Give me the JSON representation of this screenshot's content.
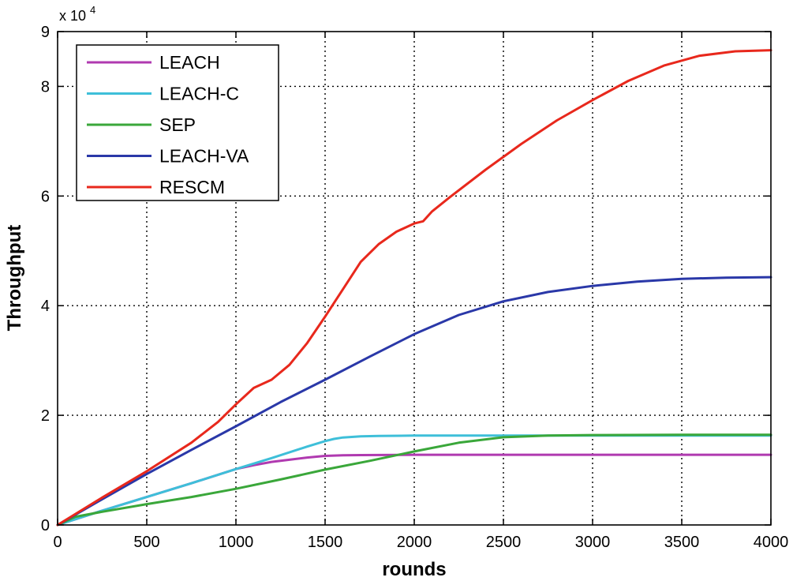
{
  "chart_data": {
    "type": "line",
    "xlabel": "rounds",
    "ylabel": "Throughput",
    "xlim": [
      0,
      4000
    ],
    "ylim": [
      0,
      90000
    ],
    "xticks": [
      0,
      500,
      1000,
      1500,
      2000,
      2500,
      3000,
      3500,
      4000
    ],
    "yticks": [
      0,
      20000,
      40000,
      60000,
      80000,
      90000
    ],
    "ytick_labels": [
      "0",
      "2",
      "4",
      "6",
      "8",
      "9"
    ],
    "y_exponent": {
      "base": "x 10",
      "power": "4"
    },
    "grid": true,
    "legend_position": "top-left",
    "series": [
      {
        "name": "LEACH",
        "color": "#b03ab0",
        "x": [
          0,
          250,
          500,
          750,
          1000,
          1100,
          1200,
          1300,
          1400,
          1500,
          1600,
          1700,
          2000,
          2500,
          3000,
          3500,
          4000
        ],
        "y": [
          0,
          2600,
          5100,
          7600,
          10200,
          10900,
          11500,
          11900,
          12300,
          12600,
          12700,
          12750,
          12800,
          12800,
          12800,
          12800,
          12800
        ]
      },
      {
        "name": "LEACH-C",
        "color": "#3ebfd9",
        "x": [
          0,
          250,
          500,
          750,
          1000,
          1200,
          1400,
          1500,
          1550,
          1600,
          1700,
          1800,
          2000,
          2500,
          3000,
          3500,
          4000
        ],
        "y": [
          0,
          2600,
          5100,
          7600,
          10200,
          12200,
          14300,
          15300,
          15700,
          15950,
          16150,
          16250,
          16300,
          16300,
          16300,
          16300,
          16300
        ]
      },
      {
        "name": "SEP",
        "color": "#3aa73a",
        "x": [
          0,
          100,
          250,
          500,
          750,
          1000,
          1250,
          1500,
          1750,
          2000,
          2250,
          2500,
          2750,
          3000,
          3500,
          4000
        ],
        "y": [
          0,
          1500,
          2400,
          3800,
          5100,
          6600,
          8300,
          10100,
          11700,
          13400,
          15000,
          16000,
          16300,
          16400,
          16450,
          16450
        ]
      },
      {
        "name": "LEACH-VA",
        "color": "#2a38a8",
        "x": [
          0,
          250,
          500,
          750,
          1000,
          1250,
          1500,
          1750,
          2000,
          2250,
          2500,
          2750,
          3000,
          3250,
          3500,
          3750,
          4000
        ],
        "y": [
          0,
          4700,
          9300,
          13700,
          18000,
          22400,
          26500,
          30700,
          34800,
          38300,
          40800,
          42500,
          43600,
          44400,
          44900,
          45100,
          45200
        ]
      },
      {
        "name": "RESCM",
        "color": "#e8281c",
        "x": [
          0,
          250,
          500,
          750,
          900,
          1000,
          1100,
          1200,
          1300,
          1400,
          1500,
          1600,
          1700,
          1800,
          1900,
          2000,
          2050,
          2100,
          2200,
          2400,
          2600,
          2800,
          3000,
          3200,
          3400,
          3600,
          3800,
          4000
        ],
        "y": [
          0,
          5000,
          9800,
          15000,
          18800,
          22000,
          25000,
          26500,
          29200,
          33200,
          38000,
          43000,
          48000,
          51200,
          53500,
          55000,
          55400,
          57200,
          59800,
          64800,
          69500,
          73800,
          77500,
          81000,
          83800,
          85600,
          86400,
          86600
        ]
      }
    ]
  }
}
